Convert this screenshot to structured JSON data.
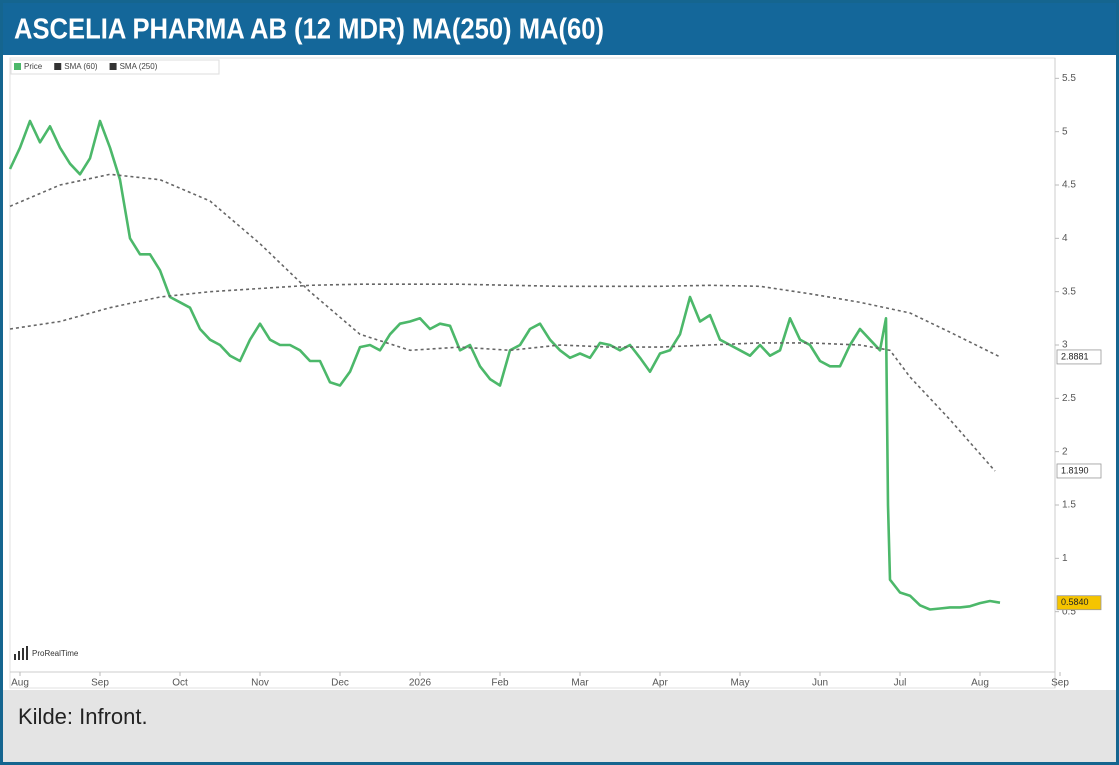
{
  "chart_data": {
    "type": "line",
    "title": "ASCELIA PHARMA AB (12 MDR) MA(250) MA(60)",
    "caption": "Kilde: Infront.",
    "watermark": "ProRealTime",
    "xlim": [
      -0.125,
      13
    ],
    "xticks": [
      {
        "value": 0,
        "label": "Aug"
      },
      {
        "value": 1,
        "label": "Sep"
      },
      {
        "value": 2,
        "label": "Oct"
      },
      {
        "value": 3,
        "label": "Nov"
      },
      {
        "value": 4,
        "label": "Dec"
      },
      {
        "value": 5,
        "label": "2026"
      },
      {
        "value": 6,
        "label": "Feb"
      },
      {
        "value": 7,
        "label": "Mar"
      },
      {
        "value": 8,
        "label": "Apr"
      },
      {
        "value": 9,
        "label": "May"
      },
      {
        "value": 10,
        "label": "Jun"
      },
      {
        "value": 11,
        "label": "Jul"
      },
      {
        "value": 12,
        "label": "Aug"
      },
      {
        "value": 13,
        "label": "Sep"
      }
    ],
    "ylim": [
      0,
      5.7
    ],
    "yticks": [
      0.5,
      1,
      1.5,
      2,
      2.5,
      3,
      3.5,
      4,
      4.5,
      5,
      5.5
    ],
    "grid": false,
    "legend": "top-left",
    "series": [
      {
        "name": "Price",
        "color": "#4cb86a",
        "style": "solid",
        "end_label": "0.5840",
        "end_label_fill": "#f5c400",
        "x": [
          -0.125,
          0,
          0.125,
          0.25,
          0.375,
          0.5,
          0.625,
          0.75,
          0.875,
          1,
          1.125,
          1.25,
          1.375,
          1.5,
          1.625,
          1.75,
          1.875,
          2,
          2.125,
          2.25,
          2.375,
          2.5,
          2.625,
          2.75,
          2.875,
          3,
          3.125,
          3.25,
          3.375,
          3.5,
          3.625,
          3.75,
          3.875,
          4,
          4.125,
          4.25,
          4.375,
          4.5,
          4.625,
          4.75,
          4.875,
          5,
          5.125,
          5.25,
          5.375,
          5.5,
          5.625,
          5.75,
          5.875,
          6,
          6.125,
          6.25,
          6.375,
          6.5,
          6.625,
          6.75,
          6.875,
          7,
          7.125,
          7.25,
          7.375,
          7.5,
          7.625,
          7.75,
          7.875,
          8,
          8.125,
          8.25,
          8.375,
          8.5,
          8.625,
          8.75,
          8.875,
          9,
          9.125,
          9.25,
          9.375,
          9.5,
          9.625,
          9.75,
          9.875,
          10,
          10.125,
          10.25,
          10.375,
          10.5,
          10.625,
          10.75,
          10.825,
          10.85,
          10.875,
          11,
          11.125,
          11.25,
          11.375,
          11.5,
          11.625,
          11.75,
          11.875,
          12,
          12.125,
          12.25
        ],
        "values": [
          4.65,
          4.85,
          5.1,
          4.9,
          5.05,
          4.85,
          4.7,
          4.6,
          4.75,
          5.1,
          4.85,
          4.55,
          4.0,
          3.85,
          3.85,
          3.7,
          3.45,
          3.4,
          3.35,
          3.15,
          3.05,
          3.0,
          2.9,
          2.85,
          3.05,
          3.2,
          3.05,
          3.0,
          3.0,
          2.95,
          2.85,
          2.85,
          2.65,
          2.62,
          2.75,
          2.98,
          3.0,
          2.95,
          3.1,
          3.2,
          3.22,
          3.25,
          3.15,
          3.2,
          3.18,
          2.95,
          3.0,
          2.8,
          2.68,
          2.62,
          2.95,
          3.0,
          3.15,
          3.2,
          3.05,
          2.95,
          2.88,
          2.92,
          2.88,
          3.02,
          3.0,
          2.95,
          3.0,
          2.88,
          2.75,
          2.92,
          2.95,
          3.1,
          3.45,
          3.22,
          3.28,
          3.05,
          3.0,
          2.95,
          2.9,
          3.0,
          2.9,
          2.95,
          3.25,
          3.05,
          3.0,
          2.85,
          2.8,
          2.8,
          3.0,
          3.15,
          3.05,
          2.95,
          3.25,
          1.5,
          0.8,
          0.68,
          0.65,
          0.56,
          0.52,
          0.53,
          0.54,
          0.54,
          0.55,
          0.58,
          0.6,
          0.584
        ]
      },
      {
        "name": "SMA (60)",
        "color": "#333333",
        "style": "dashed",
        "end_label": "1.8190",
        "end_label_fill": "#ffffff",
        "x": [
          -0.125,
          0.5,
          1.125,
          1.75,
          2.375,
          3,
          3.625,
          4.25,
          4.875,
          5.5,
          6.125,
          6.75,
          7.375,
          8,
          8.625,
          9.25,
          9.875,
          10.5,
          10.875,
          11.125,
          11.625,
          12.187
        ],
        "values": [
          4.3,
          4.5,
          4.6,
          4.55,
          4.35,
          3.95,
          3.5,
          3.1,
          2.95,
          2.98,
          2.95,
          3.0,
          2.98,
          2.98,
          3.0,
          3.02,
          3.02,
          3.0,
          2.95,
          2.7,
          2.3,
          1.819
        ]
      },
      {
        "name": "SMA (250)",
        "color": "#333333",
        "style": "dashed",
        "end_label": "2.8881",
        "end_label_fill": "#ffffff",
        "x": [
          -0.125,
          0.5,
          1.125,
          1.75,
          2.375,
          3,
          3.625,
          4.25,
          4.875,
          5.5,
          6.125,
          6.75,
          7.375,
          8,
          8.625,
          9.25,
          9.875,
          10.5,
          11.125,
          11.625,
          12.25
        ],
        "values": [
          3.15,
          3.22,
          3.35,
          3.45,
          3.5,
          3.53,
          3.56,
          3.57,
          3.57,
          3.57,
          3.56,
          3.55,
          3.55,
          3.55,
          3.56,
          3.55,
          3.48,
          3.4,
          3.3,
          3.12,
          2.8881
        ]
      }
    ]
  }
}
